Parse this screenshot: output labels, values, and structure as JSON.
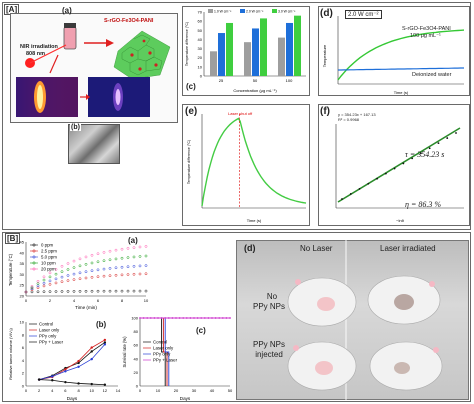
{
  "sectionA": {
    "label": "[A]",
    "sub_a": "(a)",
    "sub_b": "(b)",
    "nir_line1": "NIR irradiation",
    "nir_line2": "808 nm",
    "material": "S-rGO-Fe3O4-PANI"
  },
  "panel_c": {
    "label": "(c)",
    "ylabel": "Temperature difference (°C)",
    "xlabel": "Concentration (μg mL⁻¹)",
    "legend": [
      "1.0 W cm⁻²",
      "2.0 W cm⁻²",
      "3.0 W cm⁻²"
    ],
    "colors": [
      "#9e9e9e",
      "#1e6fd9",
      "#3fce3f"
    ],
    "yticks": [
      "0",
      "10",
      "20",
      "30",
      "40",
      "50",
      "60",
      "70"
    ]
  },
  "panel_d": {
    "label": "(d)",
    "power": "2.0 W cm⁻²",
    "series1": "S-rGO-Fe3O4-PANI",
    "series1_conc": "100 μg mL⁻¹",
    "series2": "Deionized water",
    "ylabel": "Temperature",
    "xlabel": "Time (s)"
  },
  "panel_e": {
    "label": "(e)",
    "annotation": "Laser shut off",
    "ylabel": "Temperature difference (°C)",
    "xlabel": "Time (s)"
  },
  "panel_f": {
    "label": "(f)",
    "fit_eq": "y = 354.23x + 167.13",
    "r2": "R² = 0.9968",
    "tau": "τ = 354.23 s",
    "eta": "η = 86.3 %",
    "xlabel": "−lnθ"
  },
  "sectionB": {
    "label": "[B]"
  },
  "panel_Ba": {
    "label": "(a)",
    "ylabel": "Temperature (°C)",
    "xlabel": "Time (min)",
    "legend": [
      "0 ppm",
      "2.5 ppm",
      "5.0 ppm",
      "10 ppm",
      "20 ppm"
    ],
    "colors": [
      "#111111",
      "#d42020",
      "#2a3fd6",
      "#1a9e1a",
      "#ff5ab0"
    ]
  },
  "panel_Bb": {
    "label": "(b)",
    "ylabel": "Relative tumor volume (V/V₀)",
    "xlabel": "Days",
    "legend": [
      "Control",
      "Laser only",
      "PPy only",
      "PPy + Laser"
    ],
    "colors": [
      "#111111",
      "#d42020",
      "#2a3fd6",
      "#111111"
    ]
  },
  "panel_Bc": {
    "label": "(c)",
    "ylabel": "Survival rate (%)",
    "xlabel": "Days",
    "legend": [
      "Control",
      "Laser only",
      "PPy only",
      "PPy + Laser"
    ],
    "colors": [
      "#111111",
      "#d42020",
      "#2a3fd6",
      "#cc33cc"
    ]
  },
  "panel_Bd": {
    "label": "(d)",
    "col1": "No Laser",
    "col2": "Laser irradiated",
    "row1": [
      "No",
      "PPy NPs"
    ],
    "row2": [
      "PPy NPs",
      "injected"
    ]
  }
}
